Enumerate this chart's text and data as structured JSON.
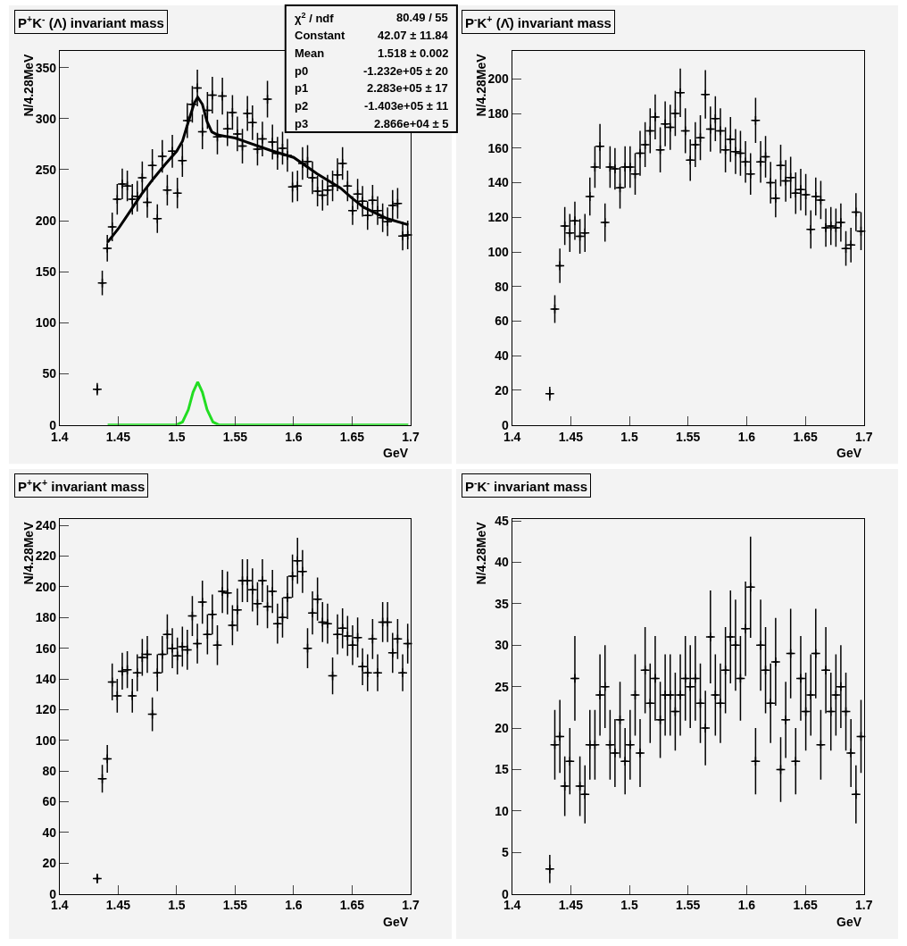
{
  "chart_data": [
    {
      "type": "scatter",
      "title": "P$^{+}$K$^{-}$ (Λ) invariant mass",
      "xlabel": "GeV",
      "ylabel": "N/4.28MeV",
      "xlim": [
        1.4,
        1.7
      ],
      "ylim": [
        0,
        366
      ],
      "xticks": [
        1.4,
        1.45,
        1.5,
        1.55,
        1.6,
        1.65,
        1.7
      ],
      "yticks": [
        0,
        50,
        100,
        150,
        200,
        250,
        300,
        350
      ],
      "annotations": [
        "χ$^{2}$ / ndf",
        "80.49 / 55",
        "Constant",
        "42.07 ± 11.84",
        "Mean",
        "1.518 ± 0.002",
        "p0",
        "-1.232e+05 ± 20",
        "p1",
        "2.283e+05 ± 17",
        "p2",
        "-1.403e+05 ± 11",
        "p3",
        "2.866e+04 ± 5"
      ],
      "x": [
        1.4321,
        1.4364,
        1.4407,
        1.4449,
        1.4492,
        1.4535,
        1.4578,
        1.4621,
        1.4663,
        1.4706,
        1.4749,
        1.4792,
        1.4835,
        1.4877,
        1.492,
        1.4963,
        1.5006,
        1.5049,
        1.5091,
        1.5134,
        1.5177,
        1.522,
        1.5263,
        1.5305,
        1.5348,
        1.5391,
        1.5434,
        1.5477,
        1.5519,
        1.5562,
        1.5605,
        1.5648,
        1.5691,
        1.5733,
        1.5776,
        1.5819,
        1.5862,
        1.5905,
        1.5947,
        1.599,
        1.6033,
        1.6076,
        1.6119,
        1.6161,
        1.6204,
        1.6247,
        1.629,
        1.6333,
        1.6375,
        1.6418,
        1.6461,
        1.6504,
        1.6547,
        1.6589,
        1.6632,
        1.6675,
        1.6718,
        1.6761,
        1.6803,
        1.6846,
        1.6889,
        1.6932,
        1.6975
      ],
      "series": [
        {
          "color": "#000000",
          "marker": "cross",
          "values": [
            35,
            139,
            173,
            194,
            221,
            236,
            234,
            221,
            224,
            242,
            218,
            254,
            202,
            263,
            230,
            268,
            227,
            259,
            298,
            314,
            330,
            287,
            308,
            323,
            282,
            322,
            290,
            306,
            285,
            273,
            305,
            296,
            270,
            280,
            319,
            277,
            266,
            271,
            264,
            233,
            234,
            256,
            258,
            242,
            229,
            225,
            230,
            234,
            245,
            256,
            234,
            210,
            226,
            219,
            205,
            220,
            210,
            203,
            199,
            215,
            217,
            185,
            186
          ],
          "errors": [
            6,
            12,
            13,
            14,
            15,
            15,
            15,
            15,
            15,
            16,
            15,
            16,
            14,
            16,
            15,
            16,
            15,
            16,
            17,
            18,
            18,
            17,
            18,
            18,
            17,
            18,
            17,
            17,
            17,
            17,
            17,
            17,
            16,
            17,
            18,
            17,
            16,
            16,
            16,
            15,
            15,
            16,
            16,
            16,
            15,
            15,
            15,
            15,
            16,
            16,
            15,
            14,
            15,
            15,
            14,
            15,
            14,
            14,
            14,
            15,
            15,
            14,
            14
          ],
          "xerrors": [
            0.0021,
            0.0021,
            0.0021,
            0.0021,
            0.0021,
            0.0021,
            0.0021,
            0.0021,
            0.0021,
            0.0021,
            0.0021,
            0.0021,
            0.0021,
            0.0021,
            0.0021,
            0.0021,
            0.0021,
            0.0021,
            0.0021,
            0.0021,
            0.0021,
            0.0021,
            0.0021,
            0.0021,
            0.0021,
            0.0021,
            0.0021,
            0.0021,
            0.0021,
            0.0021,
            0.0021,
            0.0021,
            0.0021,
            0.0021,
            0.0021,
            0.0021,
            0.0021,
            0.0021,
            0.0021,
            0.0021,
            0.0021,
            0.0021,
            0.0021,
            0.0021,
            0.0021,
            0.0021,
            0.0021,
            0.0021,
            0.0021,
            0.0021,
            0.0021,
            0.0021,
            0.0021,
            0.0021,
            0.0021,
            0.0021,
            0.0021,
            0.0021,
            0.0021,
            0.0021,
            0.0021,
            0.0021,
            0.0021
          ]
        },
        {
          "type": "line",
          "color": "#000000",
          "x": [
            1.441,
            1.45,
            1.46,
            1.47,
            1.48,
            1.49,
            1.5,
            1.505,
            1.51,
            1.515,
            1.518,
            1.522,
            1.526,
            1.53,
            1.535,
            1.54,
            1.55,
            1.56,
            1.58,
            1.6,
            1.62,
            1.64,
            1.65,
            1.66,
            1.68,
            1.698
          ],
          "values": [
            179,
            192,
            209,
            226,
            241,
            255,
            268,
            278,
            297,
            315,
            321,
            314,
            297,
            287,
            284,
            283,
            281,
            277,
            269,
            262,
            246,
            232,
            222,
            213,
            202,
            196
          ]
        },
        {
          "type": "line",
          "color": "#22dd22",
          "x": [
            1.441,
            1.5,
            1.505,
            1.51,
            1.514,
            1.518,
            1.522,
            1.526,
            1.531,
            1.536,
            1.698
          ],
          "values": [
            0,
            0,
            3,
            15,
            32,
            42,
            32,
            15,
            3,
            0,
            0
          ]
        }
      ]
    },
    {
      "type": "scatter",
      "title": "P$^{-}$K$^{+}$ (Λ̄) invariant mass",
      "xlabel": "GeV",
      "ylabel": "N/4.28MeV",
      "marker": "cross",
      "xlim": [
        1.4,
        1.7
      ],
      "ylim": [
        0,
        216
      ],
      "xticks": [
        1.4,
        1.45,
        1.5,
        1.55,
        1.6,
        1.65,
        1.7
      ],
      "yticks": [
        0,
        20,
        40,
        60,
        80,
        100,
        120,
        140,
        160,
        180,
        200
      ],
      "x": [
        1.4321,
        1.4364,
        1.4407,
        1.4449,
        1.4492,
        1.4535,
        1.4578,
        1.4621,
        1.4663,
        1.4706,
        1.4749,
        1.4792,
        1.4835,
        1.4877,
        1.492,
        1.4963,
        1.5006,
        1.5049,
        1.5091,
        1.5134,
        1.5177,
        1.522,
        1.5263,
        1.5305,
        1.5348,
        1.5391,
        1.5434,
        1.5477,
        1.5519,
        1.5562,
        1.5605,
        1.5648,
        1.5691,
        1.5733,
        1.5776,
        1.5819,
        1.5862,
        1.5905,
        1.5947,
        1.599,
        1.6033,
        1.6076,
        1.6119,
        1.6161,
        1.6204,
        1.6247,
        1.629,
        1.6333,
        1.6375,
        1.6418,
        1.6461,
        1.6504,
        1.6547,
        1.6589,
        1.6632,
        1.6675,
        1.6718,
        1.6761,
        1.6803,
        1.6846,
        1.6889,
        1.6932,
        1.6975
      ],
      "series": [
        {
          "color": "#000000",
          "values": [
            18,
            67,
            92,
            115,
            111,
            118,
            109,
            111,
            132,
            149,
            161,
            117,
            149,
            148,
            137,
            149,
            149,
            145,
            157,
            162,
            170,
            178,
            159,
            174,
            172,
            180,
            192,
            170,
            153,
            162,
            166,
            191,
            171,
            177,
            170,
            159,
            165,
            158,
            157,
            152,
            145,
            176,
            152,
            155,
            140,
            131,
            150,
            141,
            143,
            134,
            136,
            133,
            113,
            132,
            130,
            114,
            115,
            114,
            117,
            102,
            104,
            123,
            112
          ],
          "errors": [
            4,
            8,
            10,
            11,
            11,
            11,
            10,
            11,
            11,
            12,
            13,
            11,
            12,
            12,
            12,
            12,
            12,
            12,
            13,
            13,
            13,
            13,
            13,
            13,
            13,
            13,
            14,
            13,
            12,
            13,
            13,
            14,
            13,
            13,
            13,
            13,
            13,
            13,
            13,
            12,
            12,
            13,
            12,
            12,
            12,
            11,
            12,
            12,
            12,
            12,
            12,
            12,
            11,
            11,
            11,
            11,
            11,
            11,
            11,
            10,
            10,
            11,
            11
          ],
          "xerrors": [
            0.0021,
            0.0021,
            0.0021,
            0.0021,
            0.0021,
            0.0021,
            0.0021,
            0.0021,
            0.0021,
            0.0021,
            0.0021,
            0.0021,
            0.0021,
            0.0021,
            0.0021,
            0.0021,
            0.0021,
            0.0021,
            0.0021,
            0.0021,
            0.0021,
            0.0021,
            0.0021,
            0.0021,
            0.0021,
            0.0021,
            0.0021,
            0.0021,
            0.0021,
            0.0021,
            0.0021,
            0.0021,
            0.0021,
            0.0021,
            0.0021,
            0.0021,
            0.0021,
            0.0021,
            0.0021,
            0.0021,
            0.0021,
            0.0021,
            0.0021,
            0.0021,
            0.0021,
            0.0021,
            0.0021,
            0.0021,
            0.0021,
            0.0021,
            0.0021,
            0.0021,
            0.0021,
            0.0021,
            0.0021,
            0.0021,
            0.0021,
            0.0021,
            0.0021,
            0.0021,
            0.0021,
            0.0021,
            0.0021
          ]
        }
      ]
    },
    {
      "type": "scatter",
      "title": "P$^{+}$K$^{+}$ invariant mass",
      "xlabel": "GeV",
      "ylabel": "N/4.28MeV",
      "marker": "cross",
      "xlim": [
        1.4,
        1.7
      ],
      "ylim": [
        0,
        244
      ],
      "xticks": [
        1.4,
        1.45,
        1.5,
        1.55,
        1.6,
        1.65,
        1.7
      ],
      "yticks": [
        0,
        20,
        40,
        60,
        80,
        100,
        120,
        140,
        160,
        180,
        200,
        220,
        240
      ],
      "x": [
        1.4321,
        1.4364,
        1.4407,
        1.4449,
        1.4492,
        1.4535,
        1.4578,
        1.4621,
        1.4663,
        1.4706,
        1.4749,
        1.4792,
        1.4835,
        1.4877,
        1.492,
        1.4963,
        1.5006,
        1.5049,
        1.5091,
        1.5134,
        1.5177,
        1.522,
        1.5263,
        1.5305,
        1.5348,
        1.5391,
        1.5434,
        1.5477,
        1.5519,
        1.5562,
        1.5605,
        1.5648,
        1.5691,
        1.5733,
        1.5776,
        1.5819,
        1.5862,
        1.5905,
        1.5947,
        1.599,
        1.6033,
        1.6076,
        1.6119,
        1.6161,
        1.6204,
        1.6247,
        1.629,
        1.6333,
        1.6375,
        1.6418,
        1.6461,
        1.6504,
        1.6547,
        1.6589,
        1.6632,
        1.6675,
        1.6718,
        1.6761,
        1.6803,
        1.6846,
        1.6889,
        1.6932,
        1.6975
      ],
      "series": [
        {
          "color": "#000000",
          "values": [
            10,
            75,
            88,
            138,
            129,
            145,
            146,
            129,
            144,
            154,
            156,
            117,
            144,
            156,
            169,
            160,
            155,
            161,
            159,
            181,
            163,
            190,
            169,
            182,
            162,
            197,
            196,
            175,
            185,
            204,
            204,
            198,
            189,
            204,
            187,
            197,
            176,
            180,
            193,
            207,
            217,
            210,
            160,
            183,
            192,
            177,
            176,
            142,
            169,
            173,
            168,
            162,
            167,
            148,
            144,
            166,
            144,
            177,
            177,
            157,
            166,
            144,
            163
          ],
          "errors": [
            3,
            9,
            9,
            12,
            11,
            12,
            12,
            11,
            12,
            12,
            12,
            11,
            12,
            12,
            13,
            13,
            12,
            13,
            13,
            13,
            13,
            14,
            13,
            13,
            13,
            14,
            14,
            13,
            14,
            14,
            14,
            14,
            14,
            14,
            14,
            14,
            13,
            13,
            14,
            14,
            15,
            14,
            13,
            14,
            14,
            13,
            13,
            12,
            13,
            13,
            13,
            13,
            13,
            12,
            12,
            13,
            12,
            13,
            13,
            13,
            13,
            12,
            13
          ],
          "xerrors": [
            0.0021,
            0.0021,
            0.0021,
            0.0021,
            0.0021,
            0.0021,
            0.0021,
            0.0021,
            0.0021,
            0.0021,
            0.0021,
            0.0021,
            0.0021,
            0.0021,
            0.0021,
            0.0021,
            0.0021,
            0.0021,
            0.0021,
            0.0021,
            0.0021,
            0.0021,
            0.0021,
            0.0021,
            0.0021,
            0.0021,
            0.0021,
            0.0021,
            0.0021,
            0.0021,
            0.0021,
            0.0021,
            0.0021,
            0.0021,
            0.0021,
            0.0021,
            0.0021,
            0.0021,
            0.0021,
            0.0021,
            0.0021,
            0.0021,
            0.0021,
            0.0021,
            0.0021,
            0.0021,
            0.0021,
            0.0021,
            0.0021,
            0.0021,
            0.0021,
            0.0021,
            0.0021,
            0.0021,
            0.0021,
            0.0021,
            0.0021,
            0.0021,
            0.0021,
            0.0021,
            0.0021,
            0.0021,
            0.0021
          ]
        }
      ]
    },
    {
      "type": "scatter",
      "title": "P$^{-}$K$^{-}$ invariant mass",
      "xlabel": "GeV",
      "ylabel": "N/4.28MeV",
      "marker": "cross",
      "xlim": [
        1.4,
        1.7
      ],
      "ylim": [
        0,
        45.2
      ],
      "xticks": [
        1.4,
        1.45,
        1.5,
        1.55,
        1.6,
        1.65,
        1.7
      ],
      "yticks": [
        0,
        5,
        10,
        15,
        20,
        25,
        30,
        35,
        40,
        45
      ],
      "x": [
        1.4321,
        1.4364,
        1.4407,
        1.4449,
        1.4492,
        1.4535,
        1.4578,
        1.4621,
        1.4663,
        1.4706,
        1.4749,
        1.4792,
        1.4835,
        1.4877,
        1.492,
        1.4963,
        1.5006,
        1.5049,
        1.5091,
        1.5134,
        1.5177,
        1.522,
        1.5263,
        1.5305,
        1.5348,
        1.5391,
        1.5434,
        1.5477,
        1.5519,
        1.5562,
        1.5605,
        1.5648,
        1.5691,
        1.5733,
        1.5776,
        1.5819,
        1.5862,
        1.5905,
        1.5947,
        1.599,
        1.6033,
        1.6076,
        1.6119,
        1.6161,
        1.6204,
        1.6247,
        1.629,
        1.6333,
        1.6375,
        1.6418,
        1.6461,
        1.6504,
        1.6547,
        1.6589,
        1.6632,
        1.6675,
        1.6718,
        1.6761,
        1.6803,
        1.6846,
        1.6889,
        1.6932,
        1.6975
      ],
      "series": [
        {
          "color": "#000000",
          "values": [
            3,
            18,
            19,
            13,
            16,
            26,
            13,
            12,
            18,
            18,
            24,
            25,
            18,
            17,
            21,
            16,
            18,
            24,
            17,
            27,
            23,
            26,
            21,
            24,
            24,
            22,
            24,
            26,
            25,
            26,
            23,
            20,
            31,
            24,
            23,
            27,
            31,
            30,
            26,
            32,
            37,
            16,
            30,
            27,
            23,
            28,
            15,
            21,
            29,
            16,
            26,
            22,
            24,
            29,
            18,
            27,
            22,
            24,
            25,
            22,
            17,
            12,
            19
          ],
          "errors": [
            1.7,
            4.2,
            4.4,
            3.6,
            4.0,
            5.1,
            3.6,
            3.5,
            4.2,
            4.2,
            4.9,
            5.0,
            4.2,
            4.1,
            4.6,
            4.0,
            4.2,
            4.9,
            4.1,
            5.2,
            4.8,
            5.1,
            4.6,
            4.9,
            4.9,
            4.7,
            4.9,
            5.1,
            5.0,
            5.1,
            4.8,
            4.5,
            5.6,
            4.9,
            4.8,
            5.2,
            5.6,
            5.5,
            5.1,
            5.7,
            6.1,
            4.0,
            5.5,
            5.2,
            4.8,
            5.3,
            3.9,
            4.6,
            5.4,
            4.0,
            5.1,
            4.7,
            4.9,
            5.4,
            4.2,
            5.2,
            4.7,
            4.9,
            5.0,
            4.7,
            4.1,
            3.5,
            4.4
          ],
          "xerrors": [
            0.0021,
            0.0021,
            0.0021,
            0.0021,
            0.0021,
            0.0021,
            0.0021,
            0.0021,
            0.0021,
            0.0021,
            0.0021,
            0.0021,
            0.0021,
            0.0021,
            0.0021,
            0.0021,
            0.0021,
            0.0021,
            0.0021,
            0.0021,
            0.0021,
            0.0021,
            0.0021,
            0.0021,
            0.0021,
            0.0021,
            0.0021,
            0.0021,
            0.0021,
            0.0021,
            0.0021,
            0.0021,
            0.0021,
            0.0021,
            0.0021,
            0.0021,
            0.0021,
            0.0021,
            0.0021,
            0.0021,
            0.0021,
            0.0021,
            0.0021,
            0.0021,
            0.0021,
            0.0021,
            0.0021,
            0.0021,
            0.0021,
            0.0021,
            0.0021,
            0.0021,
            0.0021,
            0.0021,
            0.0021,
            0.0021,
            0.0021,
            0.0021,
            0.0021,
            0.0021,
            0.0021,
            0.0021,
            0.0021
          ]
        }
      ]
    }
  ]
}
